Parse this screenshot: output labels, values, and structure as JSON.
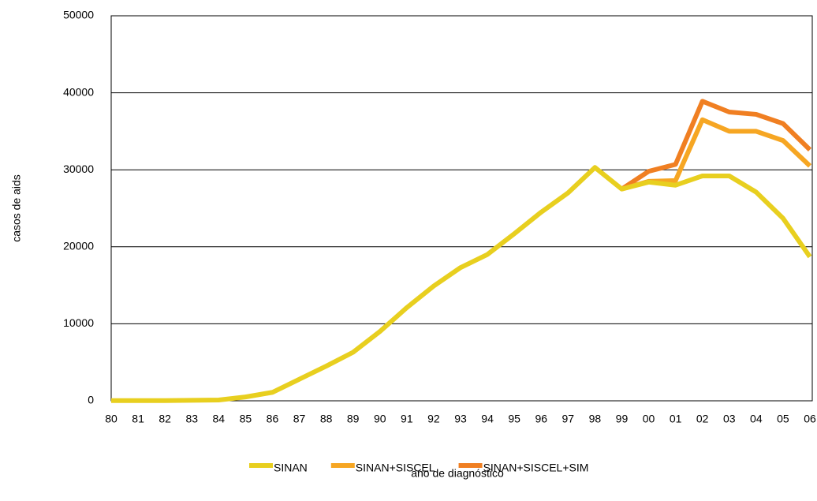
{
  "chart_data": {
    "type": "line",
    "x_label": "ano de diagnóstico",
    "y_label": "casos de aids",
    "categories": [
      "80",
      "81",
      "82",
      "83",
      "84",
      "85",
      "86",
      "87",
      "88",
      "89",
      "90",
      "91",
      "92",
      "93",
      "94",
      "95",
      "96",
      "97",
      "98",
      "99",
      "00",
      "01",
      "02",
      "03",
      "04",
      "05",
      "06"
    ],
    "series": [
      {
        "name": "SINAN+SISCEL+SIM",
        "color": "#f07f22",
        "values": [
          null,
          null,
          null,
          null,
          null,
          null,
          null,
          null,
          null,
          null,
          null,
          null,
          null,
          null,
          null,
          null,
          null,
          null,
          null,
          27500,
          29800,
          30700,
          38900,
          37500,
          37200,
          36000,
          32600
        ]
      },
      {
        "name": "SINAN+SISCEL",
        "color": "#f6a623",
        "values": [
          null,
          null,
          null,
          null,
          null,
          null,
          null,
          null,
          null,
          null,
          null,
          null,
          null,
          null,
          null,
          null,
          null,
          null,
          null,
          27500,
          28500,
          28600,
          36500,
          35000,
          35000,
          33800,
          30500
        ]
      },
      {
        "name": "SINAN",
        "color": "#e8cf1f",
        "values": [
          20,
          20,
          30,
          60,
          100,
          500,
          1100,
          2800,
          4500,
          6300,
          9000,
          12100,
          14900,
          17300,
          19000,
          21700,
          24500,
          27000,
          30300,
          27500,
          28400,
          28000,
          29200,
          29200,
          27100,
          23700,
          18700
        ]
      }
    ],
    "legend_order": [
      2,
      1,
      0
    ],
    "ylim": [
      0,
      50000
    ],
    "yticks": [
      0,
      10000,
      20000,
      30000,
      40000,
      50000
    ],
    "grid": true
  }
}
